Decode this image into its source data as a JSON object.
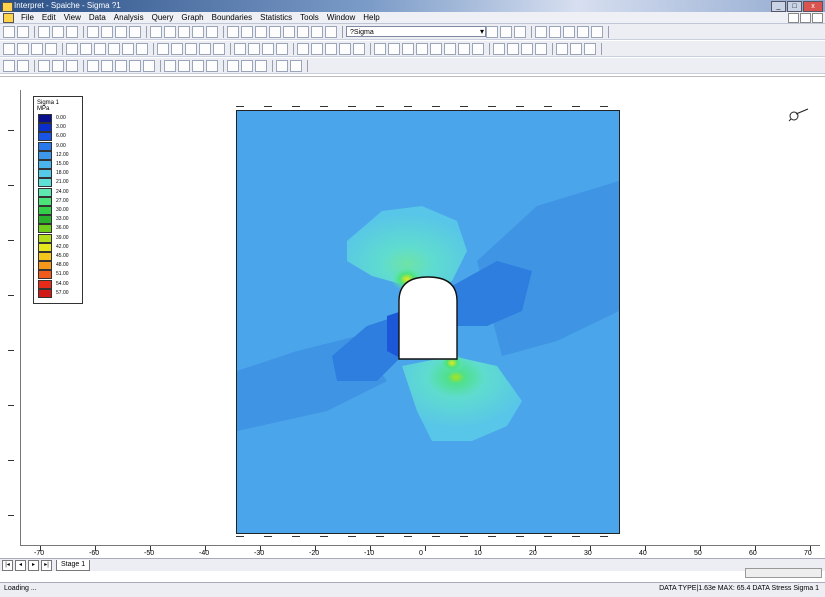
{
  "window": {
    "title": "Interpret - Spaiche - Sigma ?1",
    "controls": [
      "_",
      "□",
      "x"
    ]
  },
  "menu": {
    "items": [
      "File",
      "Edit",
      "View",
      "Data",
      "Analysis",
      "Query",
      "Graph",
      "Boundaries",
      "Statistics",
      "Tools",
      "Window",
      "Help"
    ]
  },
  "toolbar": {
    "combo_label": "?Sigma"
  },
  "legend": {
    "title": "Sigma 1",
    "subtitle": "MPa",
    "entries": [
      {
        "value": "0.00",
        "color": "#0a0f8e"
      },
      {
        "value": "3.00",
        "color": "#0b2fcf"
      },
      {
        "value": "6.00",
        "color": "#1855e6"
      },
      {
        "value": "9.00",
        "color": "#2a79ea"
      },
      {
        "value": "12.00",
        "color": "#3c98ea"
      },
      {
        "value": "15.00",
        "color": "#4ab5ec"
      },
      {
        "value": "18.00",
        "color": "#55cbe8"
      },
      {
        "value": "21.00",
        "color": "#5fe0d6"
      },
      {
        "value": "24.00",
        "color": "#5ee8b0"
      },
      {
        "value": "27.00",
        "color": "#4ce27a"
      },
      {
        "value": "30.00",
        "color": "#34cf4a"
      },
      {
        "value": "33.00",
        "color": "#2ab12b"
      },
      {
        "value": "36.00",
        "color": "#6fcd1c"
      },
      {
        "value": "39.00",
        "color": "#b3e01a"
      },
      {
        "value": "42.00",
        "color": "#e7e81b"
      },
      {
        "value": "45.00",
        "color": "#f5c51c"
      },
      {
        "value": "48.00",
        "color": "#f4981c"
      },
      {
        "value": "51.00",
        "color": "#ef5b1b"
      },
      {
        "value": "54.00",
        "color": "#e62b18"
      },
      {
        "value": "57.00",
        "color": "#d01a16"
      }
    ]
  },
  "ruler": {
    "x_labels": [
      "-70",
      "-60",
      "-50",
      "-40",
      "-30",
      "-20",
      "-10",
      "0",
      "10",
      "20",
      "30",
      "40",
      "50",
      "60",
      "70"
    ]
  },
  "tabs": {
    "sheet": "Stage 1"
  },
  "status": {
    "left": "Loading ...",
    "right": "DATA TYPE|1.63e  MAX: 65.4  DATA  Stress  Sigma 1"
  }
}
